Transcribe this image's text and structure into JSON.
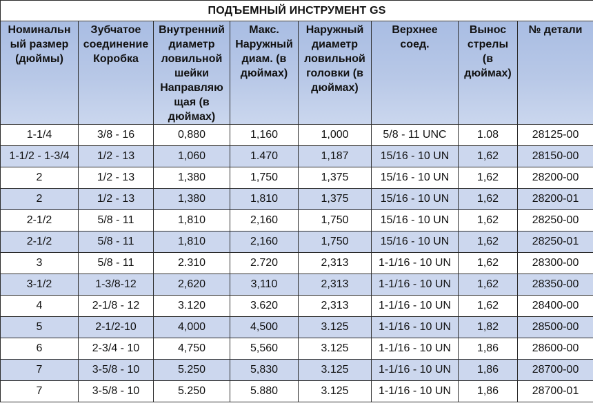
{
  "title": "ПОДЪЕМНЫЙ ИНСТРУМЕНТ GS",
  "columns": [
    "Номинальн\nый размер\n(дюймы)",
    "Зубчатое\nсоединение\nКоробка",
    "Внутренний\nдиаметр\nловильной\nшейки\nНаправляю\nщая (в\nдюймах)",
    "Макс.\nНаружный\nдиам. (в\nдюймах)",
    "Наружный\nдиаметр\nловильной\nголовки (в\nдюймах)",
    "Верхнее\nсоед.",
    "Вынос\nстрелы\n(в\nдюймах)",
    "№ детали"
  ],
  "rows": [
    [
      "1-1/4",
      "3/8 - 16",
      "0,880",
      "1,160",
      "1,000",
      "5/8 - 11 UNC",
      "1.08",
      "28125-00"
    ],
    [
      "1-1/2 - 1-3/4",
      "1/2 - 13",
      "1,060",
      "1.470",
      "1,187",
      "15/16 - 10 UN",
      "1,62",
      "28150-00"
    ],
    [
      "2",
      "1/2 - 13",
      "1,380",
      "1,750",
      "1,375",
      "15/16 - 10 UN",
      "1,62",
      "28200-00"
    ],
    [
      "2",
      "1/2 - 13",
      "1,380",
      "1,810",
      "1,375",
      "15/16 - 10 UN",
      "1,62",
      "28200-01"
    ],
    [
      "2-1/2",
      "5/8 - 11",
      "1,810",
      "2,160",
      "1,750",
      "15/16 - 10 UN",
      "1,62",
      "28250-00"
    ],
    [
      "2-1/2",
      "5/8 - 11",
      "1,810",
      "2,160",
      "1,750",
      "15/16 - 10 UN",
      "1,62",
      "28250-01"
    ],
    [
      "3",
      "5/8 - 11",
      "2.310",
      "2.720",
      "2,313",
      "1-1/16 - 10 UN",
      "1,62",
      "28300-00"
    ],
    [
      "3-1/2",
      "1-3/8-12",
      "2,620",
      "3,110",
      "2,313",
      "1-1/16 - 10 UN",
      "1,62",
      "28350-00"
    ],
    [
      "4",
      "2-1/8 - 12",
      "3.120",
      "3.620",
      "2,313",
      "1-1/16 - 10 UN",
      "1,62",
      "28400-00"
    ],
    [
      "5",
      "2-1/2-10",
      "4,000",
      "4,500",
      "3.125",
      "1-1/16 - 10 UN",
      "1,82",
      "28500-00"
    ],
    [
      "6",
      "2-3/4 - 10",
      "4,750",
      "5,560",
      "3.125",
      "1-1/16 - 10 UN",
      "1,86",
      "28600-00"
    ],
    [
      "7",
      "3-5/8 - 10",
      "5.250",
      "5,830",
      "3.125",
      "1-1/16 - 10 UN",
      "1,86",
      "28700-00"
    ],
    [
      "7",
      "3-5/8 - 10",
      "5.250",
      "5.880",
      "3.125",
      "1-1/16 - 10 UN",
      "1,86",
      "28700-01"
    ]
  ],
  "colors": {
    "header_bg": "#b8c8e7",
    "stripe_bg": "#ccd7ee",
    "border": "#2b2b2b"
  }
}
